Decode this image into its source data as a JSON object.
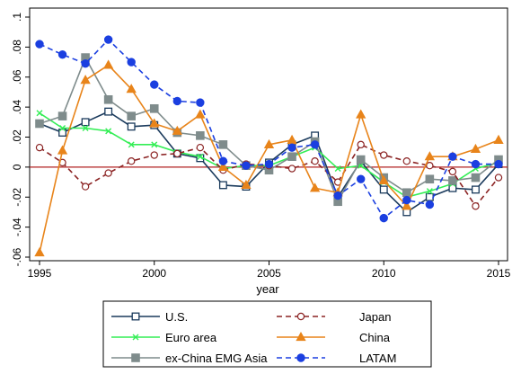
{
  "chart_data": {
    "type": "line",
    "xlabel": "year",
    "ylabel": "",
    "xlim": [
      1995,
      2015
    ],
    "ylim": [
      -0.06,
      0.1
    ],
    "x_ticks": [
      1995,
      2000,
      2005,
      2010,
      2015
    ],
    "x_tick_labels": [
      "1995",
      "2000",
      "2005",
      "2010",
      "2015"
    ],
    "y_ticks": [
      -0.06,
      -0.04,
      -0.02,
      0,
      0.02,
      0.04,
      0.06,
      0.08,
      0.1
    ],
    "y_tick_labels": [
      "-.06",
      "-.04",
      "-.02",
      "0",
      ".02",
      ".04",
      ".06",
      ".08",
      ".1"
    ],
    "reference_line": {
      "y": 0,
      "color": "#b22222"
    },
    "grid": false,
    "legend_position": "bottom",
    "x": [
      1995,
      1996,
      1997,
      1998,
      1999,
      2000,
      2001,
      2002,
      2003,
      2004,
      2005,
      2006,
      2007,
      2008,
      2009,
      2010,
      2011,
      2012,
      2013,
      2014,
      2015
    ],
    "series": [
      {
        "name": "U.S.",
        "color": "#1a3a5c",
        "dash": "solid",
        "marker": "hollow-square",
        "values": [
          0.029,
          0.023,
          0.03,
          0.037,
          0.027,
          0.028,
          0.009,
          0.006,
          -0.012,
          -0.013,
          0.003,
          0.015,
          0.021,
          -0.02,
          0.004,
          -0.015,
          -0.03,
          -0.02,
          -0.014,
          -0.015,
          0.002
        ]
      },
      {
        "name": "Euro area",
        "color": "#33ee55",
        "dash": "solid",
        "marker": "x",
        "values": [
          0.036,
          0.026,
          0.026,
          0.024,
          0.015,
          0.015,
          0.01,
          0.007,
          -0.001,
          0.001,
          0.001,
          0.007,
          0.013,
          -0.001,
          0.001,
          -0.01,
          -0.02,
          -0.016,
          -0.011,
          -0.001,
          0.003
        ]
      },
      {
        "name": "ex-China EMG Asia",
        "color": "#7f8c8c",
        "dash": "solid",
        "marker": "filled-square",
        "values": [
          0.029,
          0.034,
          0.073,
          0.045,
          0.034,
          0.039,
          0.023,
          0.021,
          0.015,
          0.001,
          -0.002,
          0.007,
          0.017,
          -0.023,
          0.005,
          -0.007,
          -0.017,
          -0.008,
          -0.009,
          -0.007,
          0.005
        ]
      },
      {
        "name": "Japan",
        "color": "#8b2323",
        "dash": "dashed",
        "marker": "hollow-circle",
        "values": [
          0.013,
          0.003,
          -0.013,
          -0.004,
          0.004,
          0.008,
          0.009,
          0.013,
          -0.002,
          0.002,
          0.001,
          -0.001,
          0.004,
          -0.01,
          0.015,
          0.008,
          0.004,
          0.001,
          -0.003,
          -0.026,
          -0.007
        ]
      },
      {
        "name": "China",
        "color": "#e8841a",
        "dash": "solid",
        "marker": "filled-triangle",
        "values": [
          -0.057,
          0.011,
          0.058,
          0.068,
          0.052,
          0.029,
          0.024,
          0.035,
          0.0,
          -0.012,
          0.015,
          0.018,
          -0.014,
          -0.017,
          0.035,
          -0.009,
          -0.026,
          0.007,
          0.007,
          0.012,
          0.018
        ]
      },
      {
        "name": "LATAM",
        "color": "#1b3fe0",
        "dash": "dashed",
        "marker": "filled-circle",
        "values": [
          0.082,
          0.075,
          0.069,
          0.085,
          0.07,
          0.055,
          0.044,
          0.043,
          0.004,
          0.001,
          0.002,
          0.013,
          0.015,
          -0.019,
          -0.008,
          -0.034,
          -0.022,
          -0.025,
          0.007,
          0.002,
          0.002
        ]
      }
    ]
  }
}
